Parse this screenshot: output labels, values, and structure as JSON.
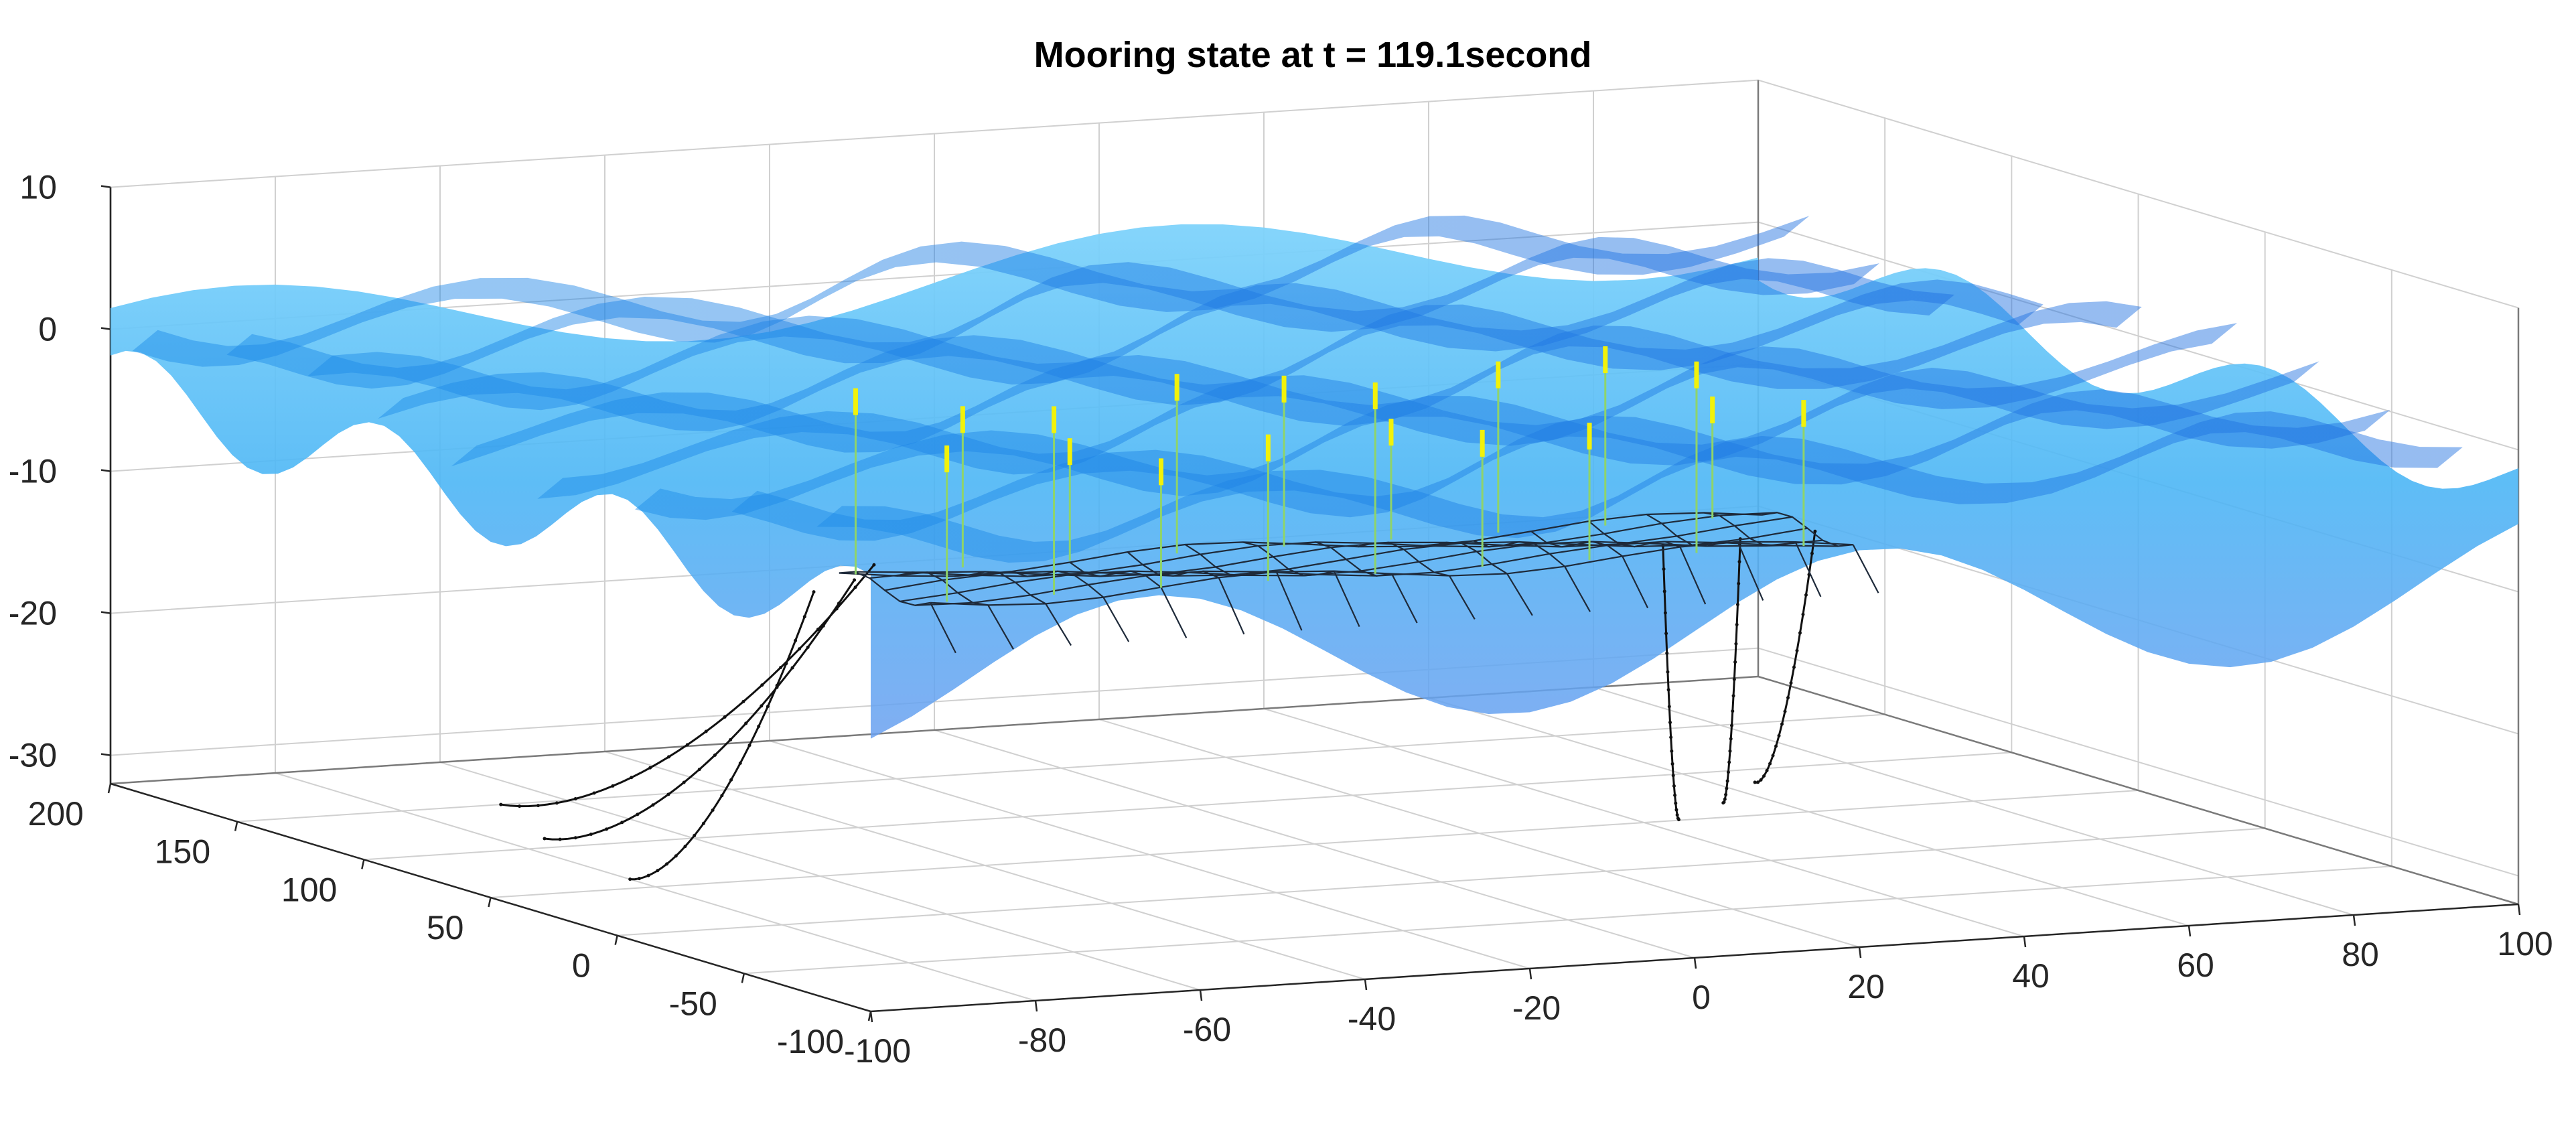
{
  "chart_data": {
    "type": "surface",
    "title": "Mooring state at t = 119.1second",
    "xlabel": "",
    "ylabel": "",
    "zlabel": "",
    "xlim": [
      -100,
      200
    ],
    "ylim": [
      -100,
      100
    ],
    "zlim": [
      -32,
      10
    ],
    "x_ticks": [
      "-100",
      "-50",
      "0",
      "50",
      "100",
      "150",
      "200"
    ],
    "y_ticks": [
      "-100",
      "-80",
      "-60",
      "-40",
      "-20",
      "0",
      "20",
      "40",
      "60",
      "80",
      "100"
    ],
    "z_ticks": [
      "10",
      "0",
      "-10",
      "-20",
      "-30"
    ],
    "grid": true,
    "colors": {
      "surface_light": "#5ec6f5",
      "surface_mid": "#33a6f0",
      "surface_dark": "#1f7fe0",
      "floater": "#f2f20a",
      "mooring": "#111111",
      "axis": "#262626",
      "grid": "#d0d0d0"
    },
    "mooring_lines_left": [
      {
        "anchor": [
          60,
          -80,
          -32
        ],
        "fairlead": [
          20,
          -70,
          -10
        ]
      },
      {
        "anchor": [
          110,
          -75,
          -32
        ],
        "fairlead": [
          30,
          -62,
          -10
        ]
      },
      {
        "anchor": [
          150,
          -68,
          -32
        ],
        "fairlead": [
          45,
          -55,
          -10
        ]
      }
    ],
    "mooring_lines_right": [
      {
        "anchor": [
          20,
          35,
          -30
        ],
        "fairlead": [
          10,
          30,
          -10
        ]
      },
      {
        "anchor": [
          35,
          45,
          -30
        ],
        "fairlead": [
          12,
          40,
          -10
        ]
      },
      {
        "anchor": [
          55,
          55,
          -30
        ],
        "fairlead": [
          15,
          50,
          -10
        ]
      }
    ],
    "floaters_count": 18,
    "net_grid_size": [
      16,
      6
    ]
  }
}
